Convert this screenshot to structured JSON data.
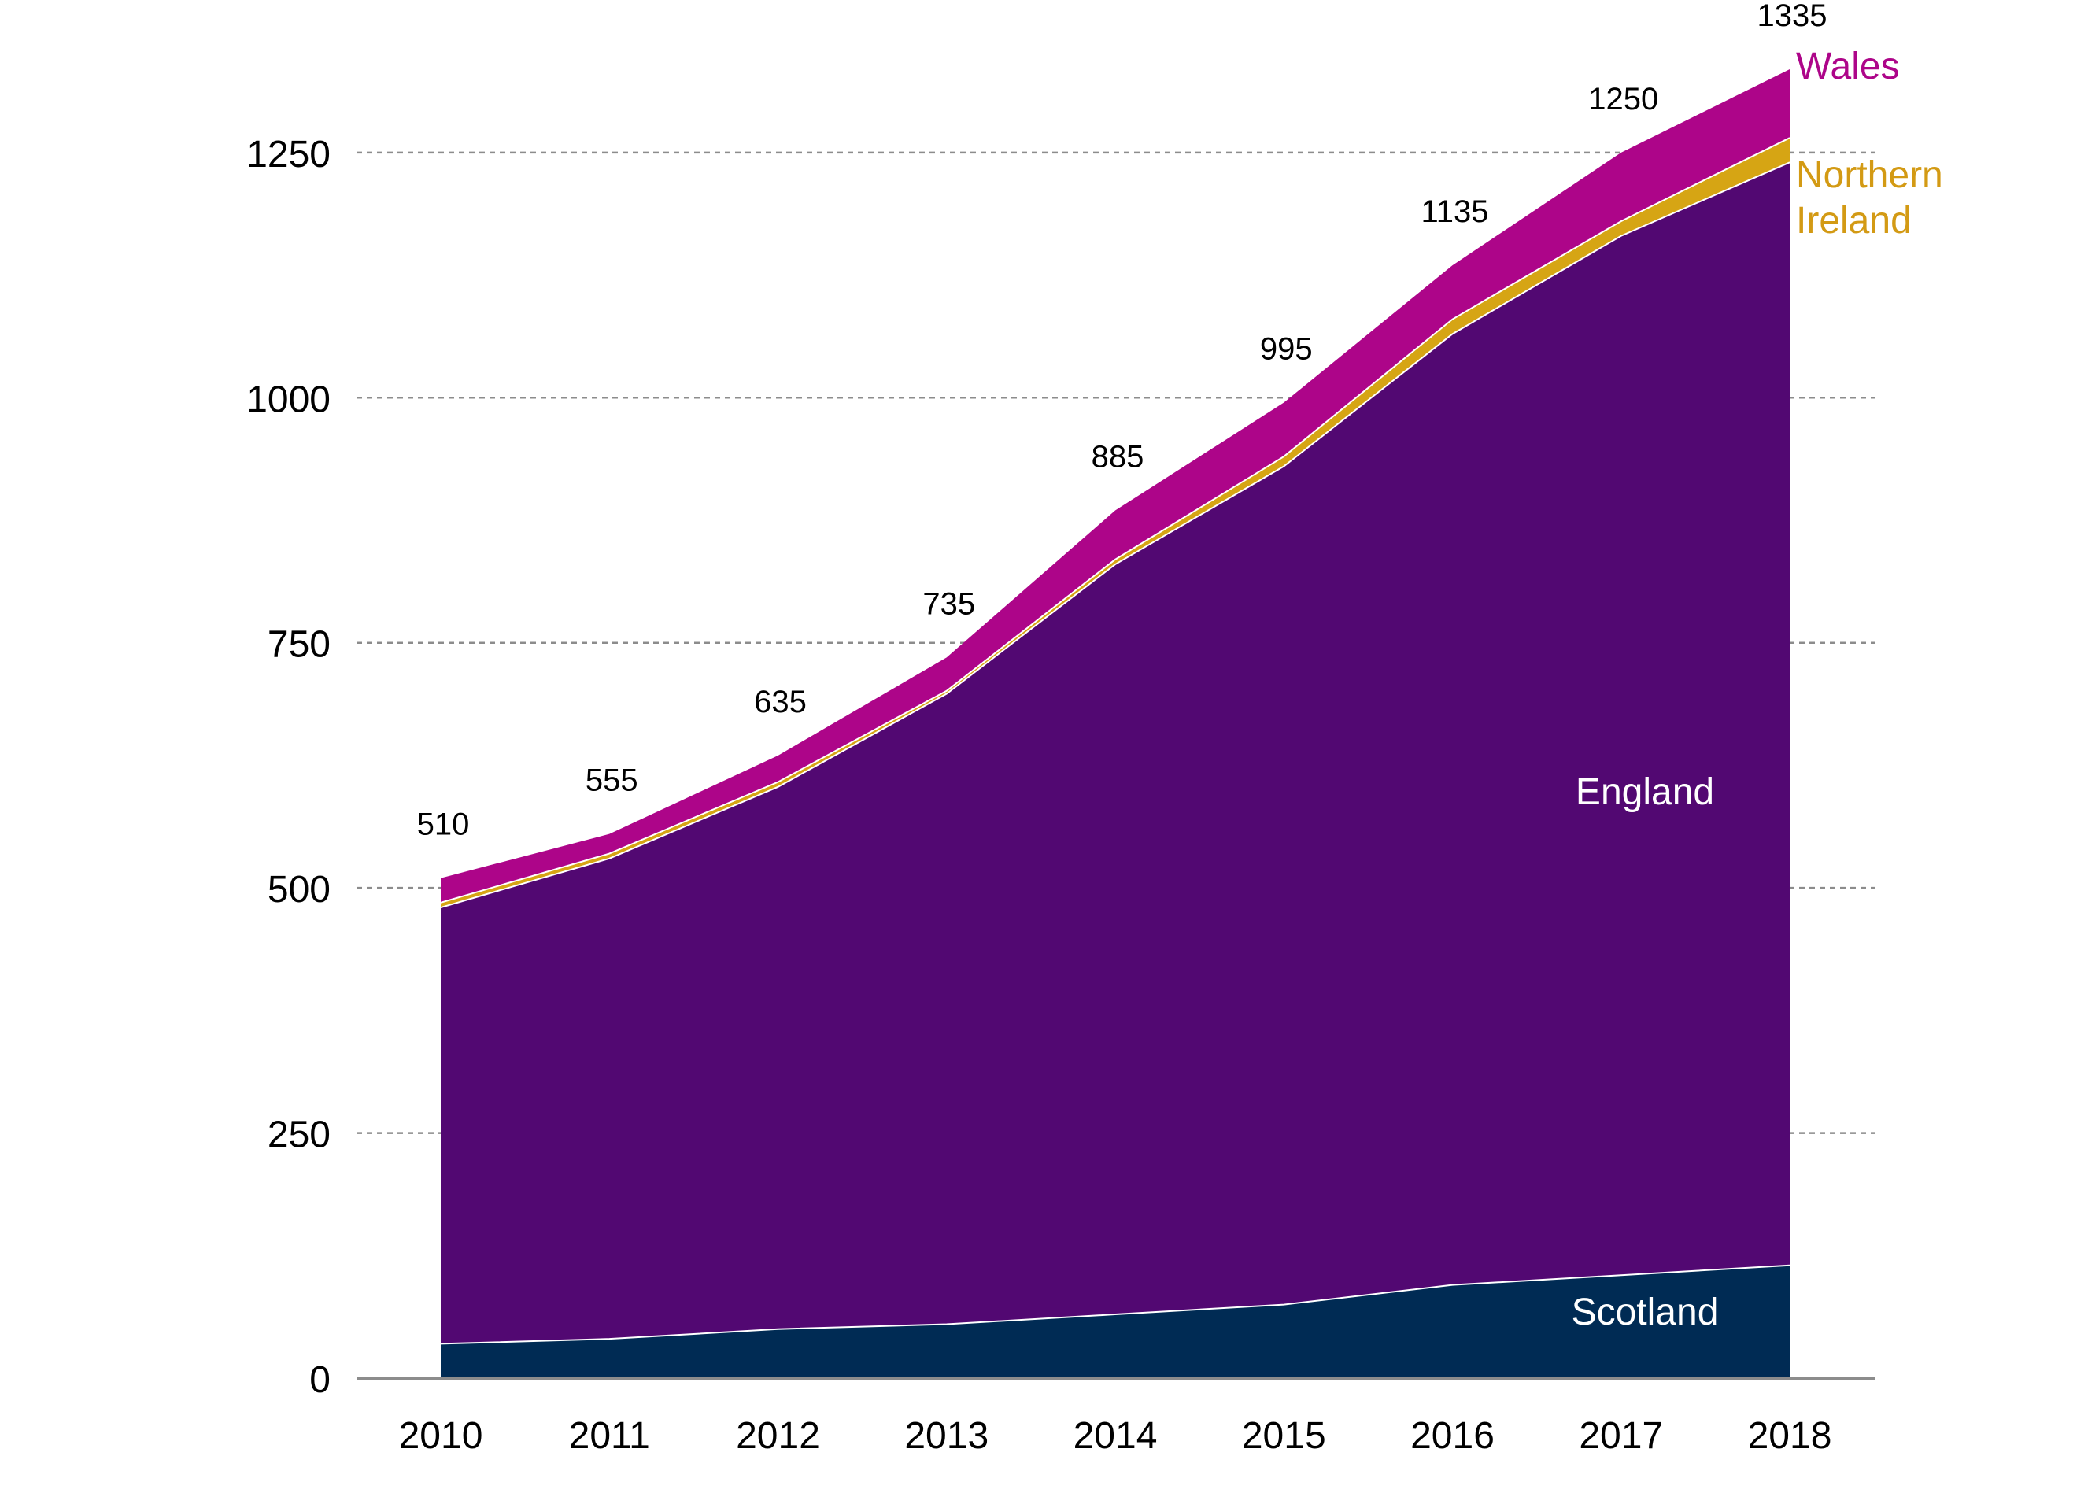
{
  "chart_data": {
    "type": "area",
    "stacked": true,
    "title": "",
    "xlabel": "",
    "ylabel": "",
    "ylim": [
      0,
      1335
    ],
    "y_ticks": [
      0,
      250,
      500,
      750,
      1000,
      1250
    ],
    "y_tick_labels": [
      "0",
      "250",
      "500",
      "750",
      "1000",
      "1250"
    ],
    "grid": "horizontal dashed",
    "categories": [
      "2010",
      "2011",
      "2012",
      "2013",
      "2014",
      "2015",
      "2016",
      "2017",
      "2018"
    ],
    "totals": [
      510,
      555,
      635,
      735,
      885,
      995,
      1135,
      1250,
      1335
    ],
    "total_labels": [
      "510",
      "555",
      "635",
      "735",
      "885",
      "995",
      "1135",
      "1250",
      "1335"
    ],
    "series": [
      {
        "name": "Scotland",
        "label_lines": [
          "Scotland"
        ],
        "color": "#002b54",
        "label_color": "#ffffff",
        "values": [
          35,
          40,
          50,
          55,
          65,
          75,
          95,
          105,
          115
        ]
      },
      {
        "name": "England",
        "label_lines": [
          "England"
        ],
        "color": "#520872",
        "label_color": "#ffffff",
        "values": [
          445,
          490,
          553,
          643,
          765,
          855,
          970,
          1060,
          1125
        ]
      },
      {
        "name": "Northern Ireland",
        "label_lines": [
          "Northern",
          "Ireland"
        ],
        "color": "#d6a514",
        "label_color": "#d39a14",
        "values": [
          5,
          5,
          5,
          3,
          5,
          10,
          15,
          15,
          25
        ]
      },
      {
        "name": "Wales",
        "label_lines": [
          "Wales"
        ],
        "color": "#ad0589",
        "label_color": "#ad0589",
        "values": [
          25,
          20,
          27,
          34,
          50,
          55,
          55,
          70,
          70
        ]
      }
    ]
  }
}
